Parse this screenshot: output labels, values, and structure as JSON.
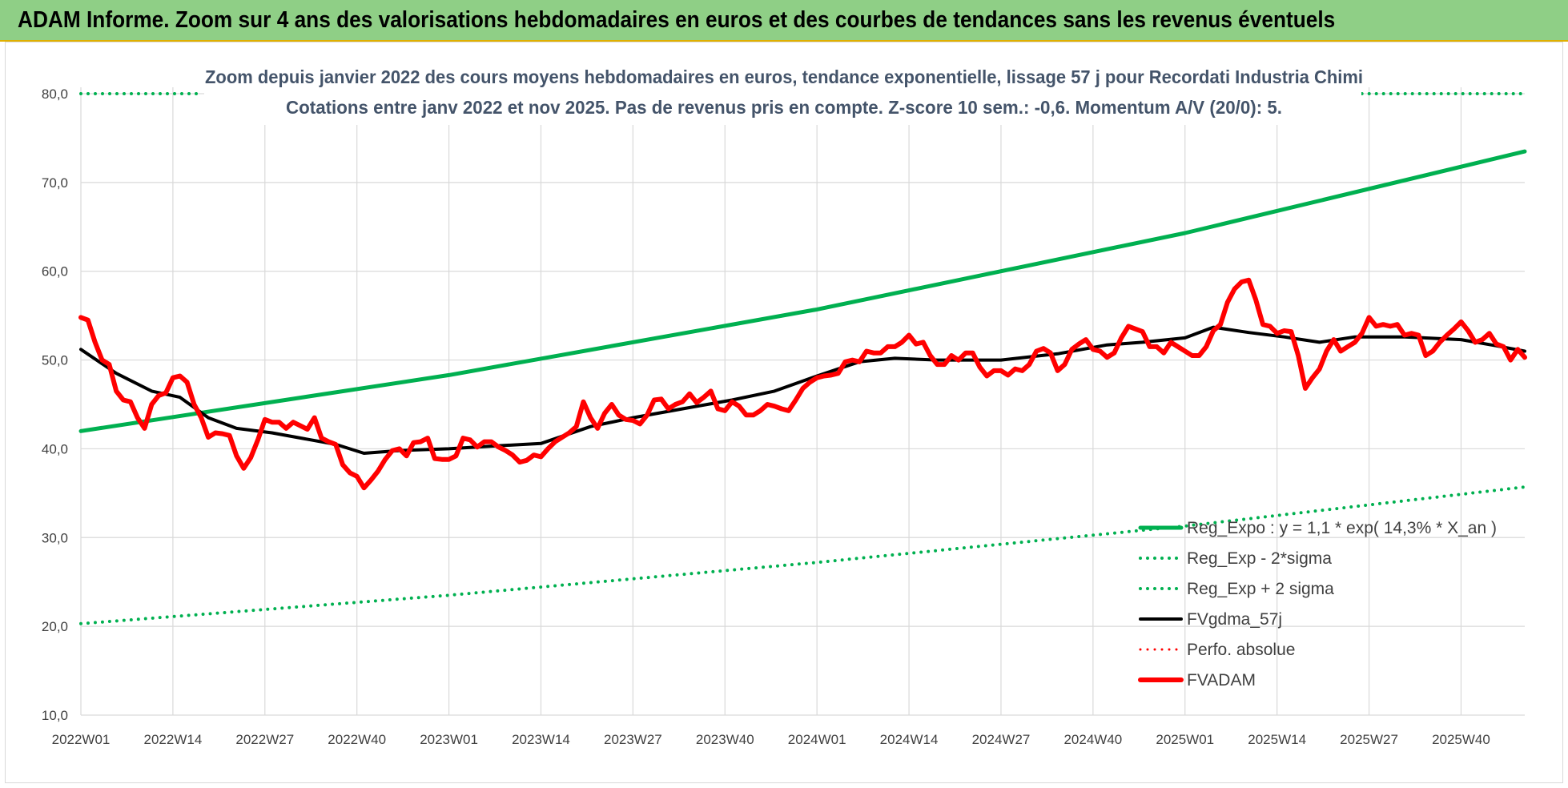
{
  "banner": {
    "title": "ADAM Informe. Zoom sur 4 ans des valorisations hebdomadaires en euros et des courbes de tendances sans les revenus éventuels"
  },
  "colors": {
    "banner_bg": "#8fcf86",
    "green": "#00b050",
    "black": "#000000",
    "red": "#ff0000",
    "title_text": "#44546a",
    "grid": "#d9d9d9"
  },
  "chart_data": {
    "type": "line",
    "title": [
      "Zoom depuis janvier 2022 des cours moyens hebdomadaires en euros, tendance exponentielle, lissage 57 j pour Recordati Industria Chimi",
      "Cotations entre janv 2022 et nov 2025. Pas de revenus pris en compte. Z-score 10 sem.: -0,6. Momentum A/V (20/0): 5."
    ],
    "xlabel": "",
    "ylabel": "",
    "ylim": [
      10,
      80
    ],
    "yticks": [
      "10,0",
      "20,0",
      "30,0",
      "40,0",
      "50,0",
      "60,0",
      "70,0",
      "80,0"
    ],
    "xticks": [
      "2022W01",
      "2022W14",
      "2022W27",
      "2022W40",
      "2023W01",
      "2023W14",
      "2023W27",
      "2023W40",
      "2024W01",
      "2024W14",
      "2024W27",
      "2024W40",
      "2025W01",
      "2025W14",
      "2025W27",
      "2025W40"
    ],
    "n_weeks": 205,
    "grid": "vertical and horizontal",
    "legend_position": "bottom-right",
    "series": [
      {
        "name": "Reg_Expo : y = 1,1 * exp( 14,3% *  X_an )",
        "color": "#00b050",
        "style": "solid",
        "width": 5,
        "points": [
          [
            0,
            42.0
          ],
          [
            52,
            48.3
          ],
          [
            104,
            55.7
          ],
          [
            156,
            64.3
          ],
          [
            204,
            73.5
          ]
        ]
      },
      {
        "name": "Reg_Exp - 2*sigma",
        "color": "#00b050",
        "style": "dotted",
        "width": 4,
        "points": [
          [
            0,
            20.3
          ],
          [
            52,
            23.5
          ],
          [
            104,
            27.2
          ],
          [
            156,
            31.3
          ],
          [
            204,
            35.7
          ]
        ]
      },
      {
        "name": "Reg_Exp + 2 sigma",
        "color": "#00b050",
        "style": "dotted",
        "width": 4,
        "points": [
          [
            0,
            80.0
          ],
          [
            17,
            80.0
          ],
          [
            181,
            80.0
          ],
          [
            204,
            80.0
          ]
        ],
        "segments": [
          [
            0,
            17
          ],
          [
            181,
            204
          ]
        ]
      },
      {
        "name": "FVgdma_57j",
        "color": "#000000",
        "style": "solid",
        "width": 4,
        "points": [
          [
            0,
            51.2
          ],
          [
            5,
            48.5
          ],
          [
            10,
            46.5
          ],
          [
            14,
            45.8
          ],
          [
            18,
            43.5
          ],
          [
            22,
            42.3
          ],
          [
            27,
            41.8
          ],
          [
            36,
            40.5
          ],
          [
            40,
            39.5
          ],
          [
            45,
            39.8
          ],
          [
            52,
            40.0
          ],
          [
            58,
            40.3
          ],
          [
            65,
            40.6
          ],
          [
            72,
            42.5
          ],
          [
            78,
            43.5
          ],
          [
            85,
            44.5
          ],
          [
            92,
            45.5
          ],
          [
            98,
            46.5
          ],
          [
            104,
            48.2
          ],
          [
            110,
            49.8
          ],
          [
            115,
            50.2
          ],
          [
            121,
            50.0
          ],
          [
            130,
            50.0
          ],
          [
            138,
            50.7
          ],
          [
            145,
            51.7
          ],
          [
            150,
            52.0
          ],
          [
            156,
            52.5
          ],
          [
            160,
            53.7
          ],
          [
            165,
            53.1
          ],
          [
            170,
            52.6
          ],
          [
            175,
            52.0
          ],
          [
            180,
            52.6
          ],
          [
            187,
            52.6
          ],
          [
            195,
            52.3
          ],
          [
            200,
            51.6
          ],
          [
            204,
            51.0
          ]
        ]
      },
      {
        "name": "Perfo. absolue",
        "color": "#ff0000",
        "style": "dotted",
        "width": 3,
        "points": []
      },
      {
        "name": "FVADAM",
        "color": "#ff0000",
        "style": "solid",
        "width": 6,
        "points": [
          [
            0,
            54.8
          ],
          [
            1,
            54.5
          ],
          [
            2,
            52.0
          ],
          [
            3,
            50.0
          ],
          [
            4,
            49.5
          ],
          [
            5,
            46.5
          ],
          [
            6,
            45.5
          ],
          [
            7,
            45.3
          ],
          [
            8,
            43.5
          ],
          [
            9,
            42.3
          ],
          [
            10,
            45.0
          ],
          [
            11,
            46.0
          ],
          [
            12,
            46.3
          ],
          [
            13,
            48.0
          ],
          [
            14,
            48.2
          ],
          [
            15,
            47.5
          ],
          [
            16,
            45.0
          ],
          [
            17,
            43.5
          ],
          [
            18,
            41.3
          ],
          [
            19,
            41.8
          ],
          [
            20,
            41.7
          ],
          [
            21,
            41.5
          ],
          [
            22,
            39.2
          ],
          [
            23,
            37.8
          ],
          [
            24,
            39.0
          ],
          [
            25,
            41.0
          ],
          [
            26,
            43.3
          ],
          [
            27,
            43.0
          ],
          [
            28,
            43.0
          ],
          [
            29,
            42.3
          ],
          [
            30,
            43.0
          ],
          [
            31,
            42.6
          ],
          [
            32,
            42.2
          ],
          [
            33,
            43.5
          ],
          [
            34,
            41.2
          ],
          [
            35,
            40.8
          ],
          [
            36,
            40.5
          ],
          [
            37,
            38.2
          ],
          [
            38,
            37.3
          ],
          [
            39,
            36.9
          ],
          [
            40,
            35.6
          ],
          [
            41,
            36.5
          ],
          [
            42,
            37.5
          ],
          [
            43,
            38.8
          ],
          [
            44,
            39.8
          ],
          [
            45,
            40.0
          ],
          [
            46,
            39.2
          ],
          [
            47,
            40.7
          ],
          [
            48,
            40.8
          ],
          [
            49,
            41.2
          ],
          [
            50,
            38.9
          ],
          [
            51,
            38.8
          ],
          [
            52,
            38.8
          ],
          [
            53,
            39.2
          ],
          [
            54,
            41.2
          ],
          [
            55,
            41.0
          ],
          [
            56,
            40.2
          ],
          [
            57,
            40.8
          ],
          [
            58,
            40.8
          ],
          [
            59,
            40.2
          ],
          [
            60,
            39.8
          ],
          [
            61,
            39.3
          ],
          [
            62,
            38.5
          ],
          [
            63,
            38.7
          ],
          [
            64,
            39.3
          ],
          [
            65,
            39.1
          ],
          [
            66,
            40.0
          ],
          [
            67,
            40.8
          ],
          [
            68,
            41.3
          ],
          [
            69,
            41.8
          ],
          [
            70,
            42.5
          ],
          [
            71,
            45.3
          ],
          [
            72,
            43.5
          ],
          [
            73,
            42.3
          ],
          [
            74,
            44.0
          ],
          [
            75,
            45.0
          ],
          [
            76,
            43.8
          ],
          [
            77,
            43.3
          ],
          [
            78,
            43.2
          ],
          [
            79,
            42.8
          ],
          [
            80,
            43.8
          ],
          [
            81,
            45.5
          ],
          [
            82,
            45.6
          ],
          [
            83,
            44.5
          ],
          [
            84,
            45.0
          ],
          [
            85,
            45.3
          ],
          [
            86,
            46.2
          ],
          [
            87,
            45.2
          ],
          [
            88,
            45.8
          ],
          [
            89,
            46.5
          ],
          [
            90,
            44.5
          ],
          [
            91,
            44.3
          ],
          [
            92,
            45.3
          ],
          [
            93,
            44.8
          ],
          [
            94,
            43.8
          ],
          [
            95,
            43.8
          ],
          [
            96,
            44.3
          ],
          [
            97,
            45.0
          ],
          [
            98,
            44.8
          ],
          [
            99,
            44.5
          ],
          [
            100,
            44.3
          ],
          [
            101,
            45.5
          ],
          [
            102,
            46.8
          ],
          [
            103,
            47.5
          ],
          [
            104,
            48.0
          ],
          [
            105,
            48.2
          ],
          [
            106,
            48.3
          ],
          [
            107,
            48.5
          ],
          [
            108,
            49.8
          ],
          [
            109,
            50.0
          ],
          [
            110,
            49.8
          ],
          [
            111,
            51.0
          ],
          [
            112,
            50.8
          ],
          [
            113,
            50.8
          ],
          [
            114,
            51.5
          ],
          [
            115,
            51.5
          ],
          [
            116,
            52.0
          ],
          [
            117,
            52.8
          ],
          [
            118,
            51.8
          ],
          [
            119,
            52.0
          ],
          [
            120,
            50.5
          ],
          [
            121,
            49.5
          ],
          [
            122,
            49.5
          ],
          [
            123,
            50.5
          ],
          [
            124,
            50.0
          ],
          [
            125,
            50.8
          ],
          [
            126,
            50.8
          ],
          [
            127,
            49.2
          ],
          [
            128,
            48.2
          ],
          [
            129,
            48.8
          ],
          [
            130,
            48.8
          ],
          [
            131,
            48.3
          ],
          [
            132,
            49.0
          ],
          [
            133,
            48.8
          ],
          [
            134,
            49.5
          ],
          [
            135,
            51.0
          ],
          [
            136,
            51.3
          ],
          [
            137,
            50.8
          ],
          [
            138,
            48.8
          ],
          [
            139,
            49.5
          ],
          [
            140,
            51.2
          ],
          [
            141,
            51.8
          ],
          [
            142,
            52.3
          ],
          [
            143,
            51.2
          ],
          [
            144,
            51.0
          ],
          [
            145,
            50.3
          ],
          [
            146,
            50.8
          ],
          [
            147,
            52.5
          ],
          [
            148,
            53.8
          ],
          [
            149,
            53.5
          ],
          [
            150,
            53.2
          ],
          [
            151,
            51.5
          ],
          [
            152,
            51.5
          ],
          [
            153,
            50.8
          ],
          [
            154,
            52.0
          ],
          [
            155,
            51.5
          ],
          [
            156,
            51.0
          ],
          [
            157,
            50.5
          ],
          [
            158,
            50.5
          ],
          [
            159,
            51.5
          ],
          [
            160,
            53.3
          ],
          [
            161,
            54.0
          ],
          [
            162,
            56.5
          ],
          [
            163,
            58.0
          ],
          [
            164,
            58.8
          ],
          [
            165,
            59.0
          ],
          [
            166,
            56.8
          ],
          [
            167,
            54.0
          ],
          [
            168,
            53.8
          ],
          [
            169,
            53.0
          ],
          [
            170,
            53.3
          ],
          [
            171,
            53.2
          ],
          [
            172,
            50.5
          ],
          [
            173,
            46.8
          ],
          [
            174,
            48.0
          ],
          [
            175,
            49.0
          ],
          [
            176,
            51.0
          ],
          [
            177,
            52.3
          ],
          [
            178,
            51.0
          ],
          [
            179,
            51.5
          ],
          [
            180,
            52.0
          ],
          [
            181,
            53.0
          ],
          [
            182,
            54.8
          ],
          [
            183,
            53.8
          ],
          [
            184,
            54.0
          ],
          [
            185,
            53.8
          ],
          [
            186,
            54.0
          ],
          [
            187,
            52.8
          ],
          [
            188,
            53.0
          ],
          [
            189,
            52.8
          ],
          [
            190,
            50.5
          ],
          [
            191,
            51.0
          ],
          [
            192,
            52.0
          ],
          [
            193,
            52.8
          ],
          [
            194,
            53.5
          ],
          [
            195,
            54.3
          ],
          [
            196,
            53.3
          ],
          [
            197,
            52.0
          ],
          [
            198,
            52.3
          ],
          [
            199,
            53.0
          ],
          [
            200,
            51.8
          ],
          [
            201,
            51.5
          ],
          [
            202,
            50.0
          ],
          [
            203,
            51.2
          ],
          [
            204,
            50.3
          ]
        ]
      }
    ]
  }
}
